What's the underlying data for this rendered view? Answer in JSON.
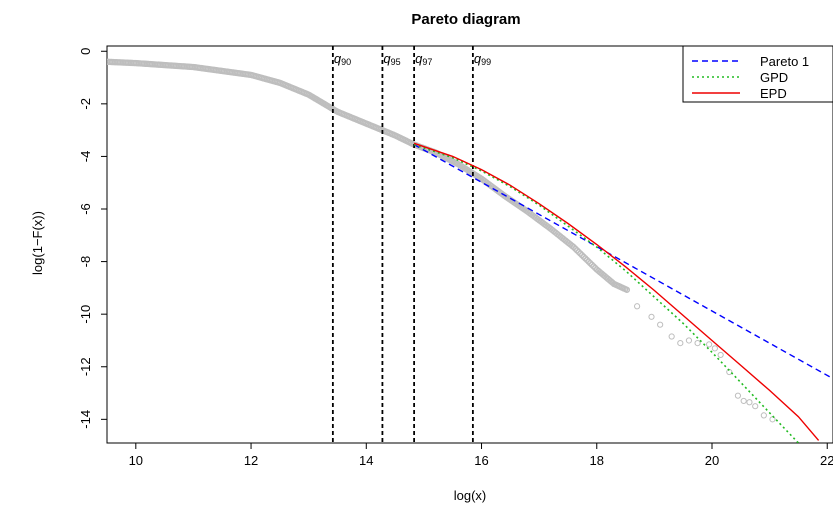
{
  "chart_data": {
    "type": "scatter",
    "title": "Pareto diagram",
    "xlabel": "log(x)",
    "ylabel": "log(1−F(x))",
    "xlim": [
      9.5,
      22.1
    ],
    "ylim": [
      -14.9,
      0.2
    ],
    "x_ticks": [
      10,
      12,
      14,
      16,
      18,
      20,
      22
    ],
    "y_ticks": [
      0,
      -2,
      -4,
      -6,
      -8,
      -10,
      -12,
      -14
    ],
    "grid": false,
    "legend_position": "top-right",
    "empirical_points": {
      "color": "#bebebe",
      "marker": "circle",
      "curve": [
        [
          9.5,
          -0.4
        ],
        [
          10.0,
          -0.45
        ],
        [
          11.0,
          -0.6
        ],
        [
          12.0,
          -0.9
        ],
        [
          12.5,
          -1.2
        ],
        [
          13.0,
          -1.65
        ],
        [
          13.5,
          -2.3
        ],
        [
          14.0,
          -2.75
        ],
        [
          14.5,
          -3.2
        ],
        [
          14.83,
          -3.55
        ],
        [
          15.2,
          -3.85
        ],
        [
          15.6,
          -4.3
        ],
        [
          16.0,
          -4.85
        ],
        [
          16.4,
          -5.5
        ],
        [
          16.8,
          -6.1
        ],
        [
          17.2,
          -6.75
        ],
        [
          17.6,
          -7.45
        ],
        [
          18.0,
          -8.3
        ],
        [
          18.3,
          -8.85
        ],
        [
          18.55,
          -9.1
        ]
      ],
      "sparse": [
        [
          18.7,
          -9.7
        ],
        [
          18.95,
          -10.1
        ],
        [
          19.1,
          -10.4
        ],
        [
          19.3,
          -10.85
        ],
        [
          19.45,
          -11.1
        ],
        [
          19.6,
          -11.0
        ],
        [
          19.75,
          -11.1
        ],
        [
          19.95,
          -11.15
        ],
        [
          20.05,
          -11.3
        ],
        [
          20.15,
          -11.55
        ],
        [
          20.3,
          -12.2
        ],
        [
          20.45,
          -13.1
        ],
        [
          20.55,
          -13.3
        ],
        [
          20.65,
          -13.35
        ],
        [
          20.75,
          -13.5
        ],
        [
          20.9,
          -13.85
        ],
        [
          21.05,
          -14.0
        ]
      ]
    },
    "series": [
      {
        "name": "Pareto 1",
        "color": "#0000ff",
        "dash": "dashed",
        "x": [
          14.83,
          22.1
        ],
        "y": [
          -3.55,
          -12.45
        ]
      },
      {
        "name": "GPD",
        "color": "#22bb22",
        "dash": "dotted",
        "x": [
          14.83,
          15.5,
          16.0,
          16.5,
          17.0,
          17.5,
          18.0,
          18.5,
          19.0,
          19.5,
          20.0,
          20.5,
          21.0,
          21.5
        ],
        "y": [
          -3.55,
          -4.05,
          -4.55,
          -5.15,
          -5.85,
          -6.65,
          -7.45,
          -8.35,
          -9.35,
          -10.35,
          -11.45,
          -12.6,
          -13.75,
          -14.9
        ]
      },
      {
        "name": "EPD",
        "color": "#ee0000",
        "dash": "solid",
        "x": [
          14.83,
          15.5,
          16.0,
          16.5,
          17.0,
          17.5,
          18.0,
          18.5,
          19.0,
          19.5,
          20.0,
          20.5,
          21.0,
          21.5,
          21.85
        ],
        "y": [
          -3.5,
          -4.0,
          -4.5,
          -5.1,
          -5.8,
          -6.55,
          -7.35,
          -8.2,
          -9.1,
          -10.05,
          -11.0,
          -11.95,
          -12.9,
          -13.9,
          -14.8
        ]
      }
    ],
    "quantile_lines": [
      {
        "label": "q",
        "sub": "90",
        "x": 13.42
      },
      {
        "label": "q",
        "sub": "95",
        "x": 14.28
      },
      {
        "label": "q",
        "sub": "97",
        "x": 14.83
      },
      {
        "label": "q",
        "sub": "99",
        "x": 15.85
      }
    ]
  }
}
